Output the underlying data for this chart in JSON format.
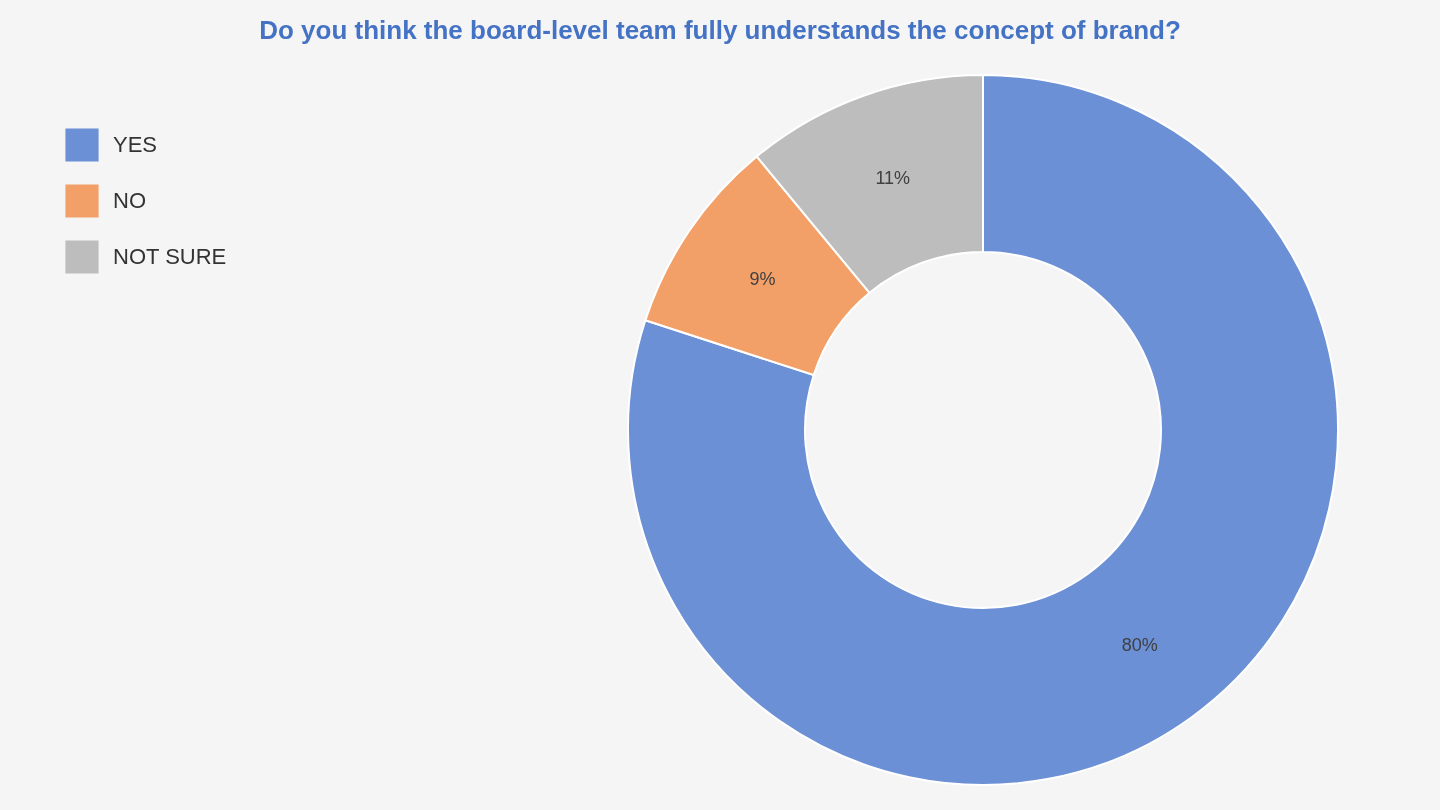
{
  "chart_data": {
    "type": "donut",
    "title": "Do you think the board-level team fully understands the concept of brand?",
    "categories": [
      "YES",
      "NO",
      "NOT SURE"
    ],
    "values": [
      80,
      9,
      11
    ],
    "value_labels": [
      "80%",
      "9%",
      "11%"
    ],
    "colors": [
      "#6b90d6",
      "#f2a068",
      "#bdbdbd"
    ],
    "legend": "top left"
  }
}
